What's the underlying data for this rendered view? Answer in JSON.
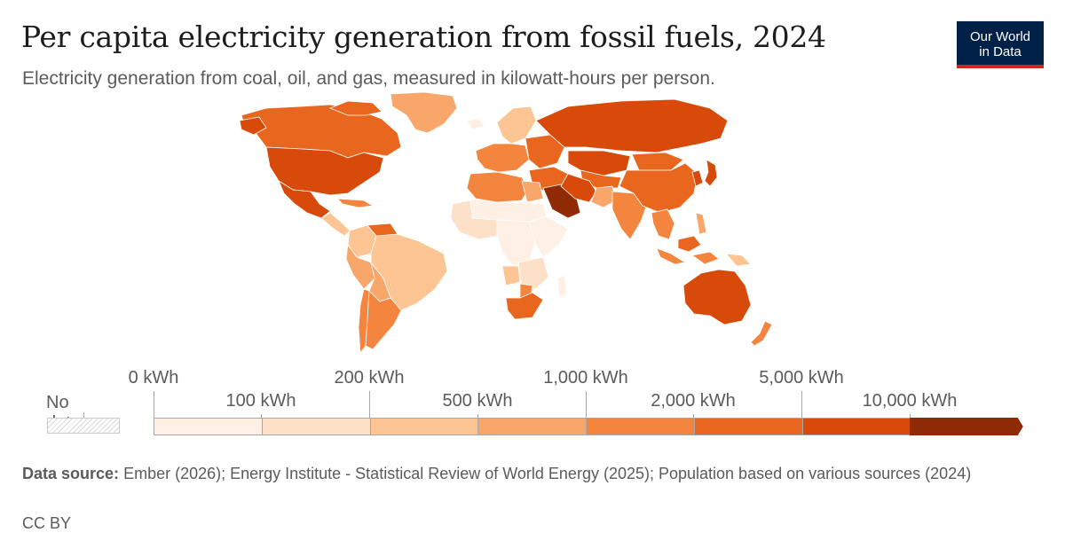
{
  "header": {
    "title": "Per capita electricity generation from fossil fuels, 2024",
    "subtitle": "Electricity generation from coal, oil, and gas, measured in kilowatt-hours per person."
  },
  "logo": {
    "line1": "Our World",
    "line2": "in Data"
  },
  "legend": {
    "no_data_label": "No data",
    "bins": [
      {
        "from": "0 kWh",
        "to": "100 kWh",
        "color": "#fff0e6"
      },
      {
        "from": "100 kWh",
        "to": "200 kWh",
        "color": "#fde0c8"
      },
      {
        "from": "200 kWh",
        "to": "500 kWh",
        "color": "#fcc593"
      },
      {
        "from": "500 kWh",
        "to": "1,000 kWh",
        "color": "#f9a66a"
      },
      {
        "from": "1,000 kWh",
        "to": "2,000 kWh",
        "color": "#f4853e"
      },
      {
        "from": "2,000 kWh",
        "to": "5,000 kWh",
        "color": "#e8661d"
      },
      {
        "from": "5,000 kWh",
        "to": "10,000 kWh",
        "color": "#d84a0a"
      },
      {
        "from": "10,000 kWh",
        "to": "",
        "color": "#8f2a04"
      }
    ],
    "top_ticks": [
      "0 kWh",
      "200 kWh",
      "1,000 kWh",
      "5,000 kWh"
    ],
    "bottom_ticks": [
      "100 kWh",
      "500 kWh",
      "2,000 kWh",
      "10,000 kWh"
    ]
  },
  "map_regions": [
    {
      "name": "Greenland",
      "color": "#f9a66a"
    },
    {
      "name": "Canada",
      "color": "#e8661d"
    },
    {
      "name": "United States",
      "color": "#d84a0a"
    },
    {
      "name": "Mexico",
      "color": "#d84a0a"
    },
    {
      "name": "Central America",
      "color": "#fcc593"
    },
    {
      "name": "Caribbean",
      "color": "#f4853e"
    },
    {
      "name": "Colombia",
      "color": "#fcc593"
    },
    {
      "name": "Venezuela",
      "color": "#e8661d"
    },
    {
      "name": "Brazil",
      "color": "#fcc593"
    },
    {
      "name": "Peru",
      "color": "#f9a66a"
    },
    {
      "name": "Bolivia",
      "color": "#f9a66a"
    },
    {
      "name": "Argentina",
      "color": "#f4853e"
    },
    {
      "name": "Chile",
      "color": "#f4853e"
    },
    {
      "name": "Iceland",
      "color": "#fff0e6"
    },
    {
      "name": "Scandinavia",
      "color": "#fcc593"
    },
    {
      "name": "Western Europe",
      "color": "#f4853e"
    },
    {
      "name": "Eastern Europe",
      "color": "#e8661d"
    },
    {
      "name": "Russia",
      "color": "#d84a0a"
    },
    {
      "name": "Kazakhstan",
      "color": "#d84a0a"
    },
    {
      "name": "Central Asia",
      "color": "#e8661d"
    },
    {
      "name": "Middle East",
      "color": "#e8661d"
    },
    {
      "name": "Saudi Arabia",
      "color": "#8f2a04"
    },
    {
      "name": "Iran",
      "color": "#d84a0a"
    },
    {
      "name": "Pakistan",
      "color": "#f9a66a"
    },
    {
      "name": "India",
      "color": "#f4853e"
    },
    {
      "name": "China",
      "color": "#e8661d"
    },
    {
      "name": "Mongolia",
      "color": "#e8661d"
    },
    {
      "name": "Japan",
      "color": "#d84a0a"
    },
    {
      "name": "Korea",
      "color": "#d84a0a"
    },
    {
      "name": "Southeast Asia",
      "color": "#f4853e"
    },
    {
      "name": "Indonesia",
      "color": "#f4853e"
    },
    {
      "name": "Malaysia",
      "color": "#e8661d"
    },
    {
      "name": "Philippines",
      "color": "#f9a66a"
    },
    {
      "name": "Papua New Guinea",
      "color": "#fcc593"
    },
    {
      "name": "Australia",
      "color": "#d84a0a"
    },
    {
      "name": "New Zealand",
      "color": "#f4853e"
    },
    {
      "name": "North Africa",
      "color": "#f4853e"
    },
    {
      "name": "Egypt",
      "color": "#f9a66a"
    },
    {
      "name": "Sahel",
      "color": "#fff0e6"
    },
    {
      "name": "West Africa",
      "color": "#fde0c8"
    },
    {
      "name": "Central Africa",
      "color": "#fff0e6"
    },
    {
      "name": "East Africa",
      "color": "#fff0e6"
    },
    {
      "name": "Southern Africa",
      "color": "#fde0c8"
    },
    {
      "name": "Angola",
      "color": "#fcc593"
    },
    {
      "name": "South Africa",
      "color": "#e8661d"
    },
    {
      "name": "Botswana",
      "color": "#f4853e"
    },
    {
      "name": "Madagascar",
      "color": "#fff0e6"
    }
  ],
  "footer": {
    "source_label": "Data source:",
    "source_text": "Ember (2026); Energy Institute - Statistical Review of World Energy (2025); Population based on various sources (2024)",
    "license": "CC BY"
  }
}
